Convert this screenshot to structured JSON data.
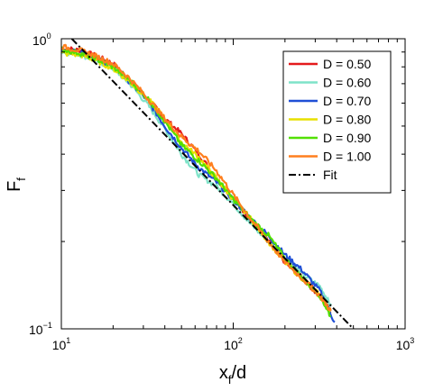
{
  "chart_data": {
    "type": "line",
    "xscale": "log",
    "yscale": "log",
    "xlim": [
      10,
      1000
    ],
    "ylim": [
      0.1,
      1.0
    ],
    "xlabel": {
      "main": "x",
      "sub": "f",
      "rest": "/d"
    },
    "ylabel": {
      "main": "F",
      "sub": "f"
    },
    "x_ticks": [
      {
        "value": 10,
        "base": "10",
        "exp": "1"
      },
      {
        "value": 100,
        "base": "10",
        "exp": "2"
      },
      {
        "value": 1000,
        "base": "10",
        "exp": "3"
      }
    ],
    "y_ticks": [
      {
        "value": 0.1,
        "base": "10",
        "exp": "−1"
      },
      {
        "value": 1.0,
        "base": "10",
        "exp": "0"
      }
    ],
    "grid": false,
    "legend_position": "top-right",
    "series": [
      {
        "name": "D = 0.50",
        "color": "#e41a1c",
        "style": "solid",
        "x": [
          10,
          13,
          16,
          20,
          25,
          32,
          40,
          50,
          63,
          80,
          100,
          126,
          160,
          200,
          250,
          320,
          370
        ],
        "y": [
          0.93,
          0.91,
          0.87,
          0.82,
          0.72,
          0.62,
          0.53,
          0.47,
          0.4,
          0.33,
          0.28,
          0.24,
          0.2,
          0.17,
          0.15,
          0.13,
          0.115
        ]
      },
      {
        "name": "D = 0.60",
        "color": "#7fe3c9",
        "style": "solid",
        "x": [
          10,
          13,
          16,
          20,
          25,
          32,
          40,
          50,
          63,
          80,
          100,
          126,
          160,
          200,
          250,
          320,
          370
        ],
        "y": [
          0.9,
          0.88,
          0.84,
          0.79,
          0.7,
          0.59,
          0.49,
          0.4,
          0.34,
          0.31,
          0.27,
          0.23,
          0.2,
          0.175,
          0.155,
          0.14,
          0.12
        ]
      },
      {
        "name": "D = 0.70",
        "color": "#1f4fd6",
        "style": "solid",
        "x": [
          10,
          13,
          16,
          20,
          25,
          32,
          40,
          50,
          63,
          80,
          100,
          126,
          160,
          200,
          250,
          320,
          390
        ],
        "y": [
          0.91,
          0.9,
          0.86,
          0.8,
          0.71,
          0.61,
          0.5,
          0.42,
          0.36,
          0.32,
          0.28,
          0.24,
          0.21,
          0.18,
          0.16,
          0.135,
          0.105
        ]
      },
      {
        "name": "D = 0.80",
        "color": "#e8e000",
        "style": "solid",
        "x": [
          10,
          13,
          16,
          20,
          25,
          32,
          40,
          50,
          63,
          80,
          100,
          126,
          160,
          200,
          250,
          320,
          370
        ],
        "y": [
          0.89,
          0.88,
          0.84,
          0.79,
          0.71,
          0.62,
          0.53,
          0.44,
          0.39,
          0.33,
          0.28,
          0.24,
          0.2,
          0.17,
          0.15,
          0.13,
          0.115
        ]
      },
      {
        "name": "D = 0.90",
        "color": "#52e000",
        "style": "solid",
        "x": [
          10,
          13,
          16,
          20,
          25,
          32,
          40,
          50,
          63,
          80,
          100,
          126,
          160,
          200,
          250,
          320,
          370
        ],
        "y": [
          0.92,
          0.89,
          0.85,
          0.8,
          0.72,
          0.62,
          0.52,
          0.43,
          0.38,
          0.33,
          0.28,
          0.24,
          0.21,
          0.175,
          0.15,
          0.13,
          0.11
        ]
      },
      {
        "name": "D = 1.00",
        "color": "#ff7f1e",
        "style": "solid",
        "x": [
          10,
          13,
          16,
          20,
          25,
          32,
          40,
          50,
          63,
          80,
          100,
          126,
          160,
          200,
          250,
          320,
          370
        ],
        "y": [
          0.94,
          0.91,
          0.87,
          0.82,
          0.73,
          0.62,
          0.53,
          0.46,
          0.41,
          0.35,
          0.29,
          0.24,
          0.2,
          0.17,
          0.15,
          0.13,
          0.115
        ]
      },
      {
        "name": "Fit",
        "color": "#000000",
        "style": "dashdot",
        "x": [
          11.5,
          500
        ],
        "y": [
          1.0,
          0.1
        ]
      }
    ]
  }
}
